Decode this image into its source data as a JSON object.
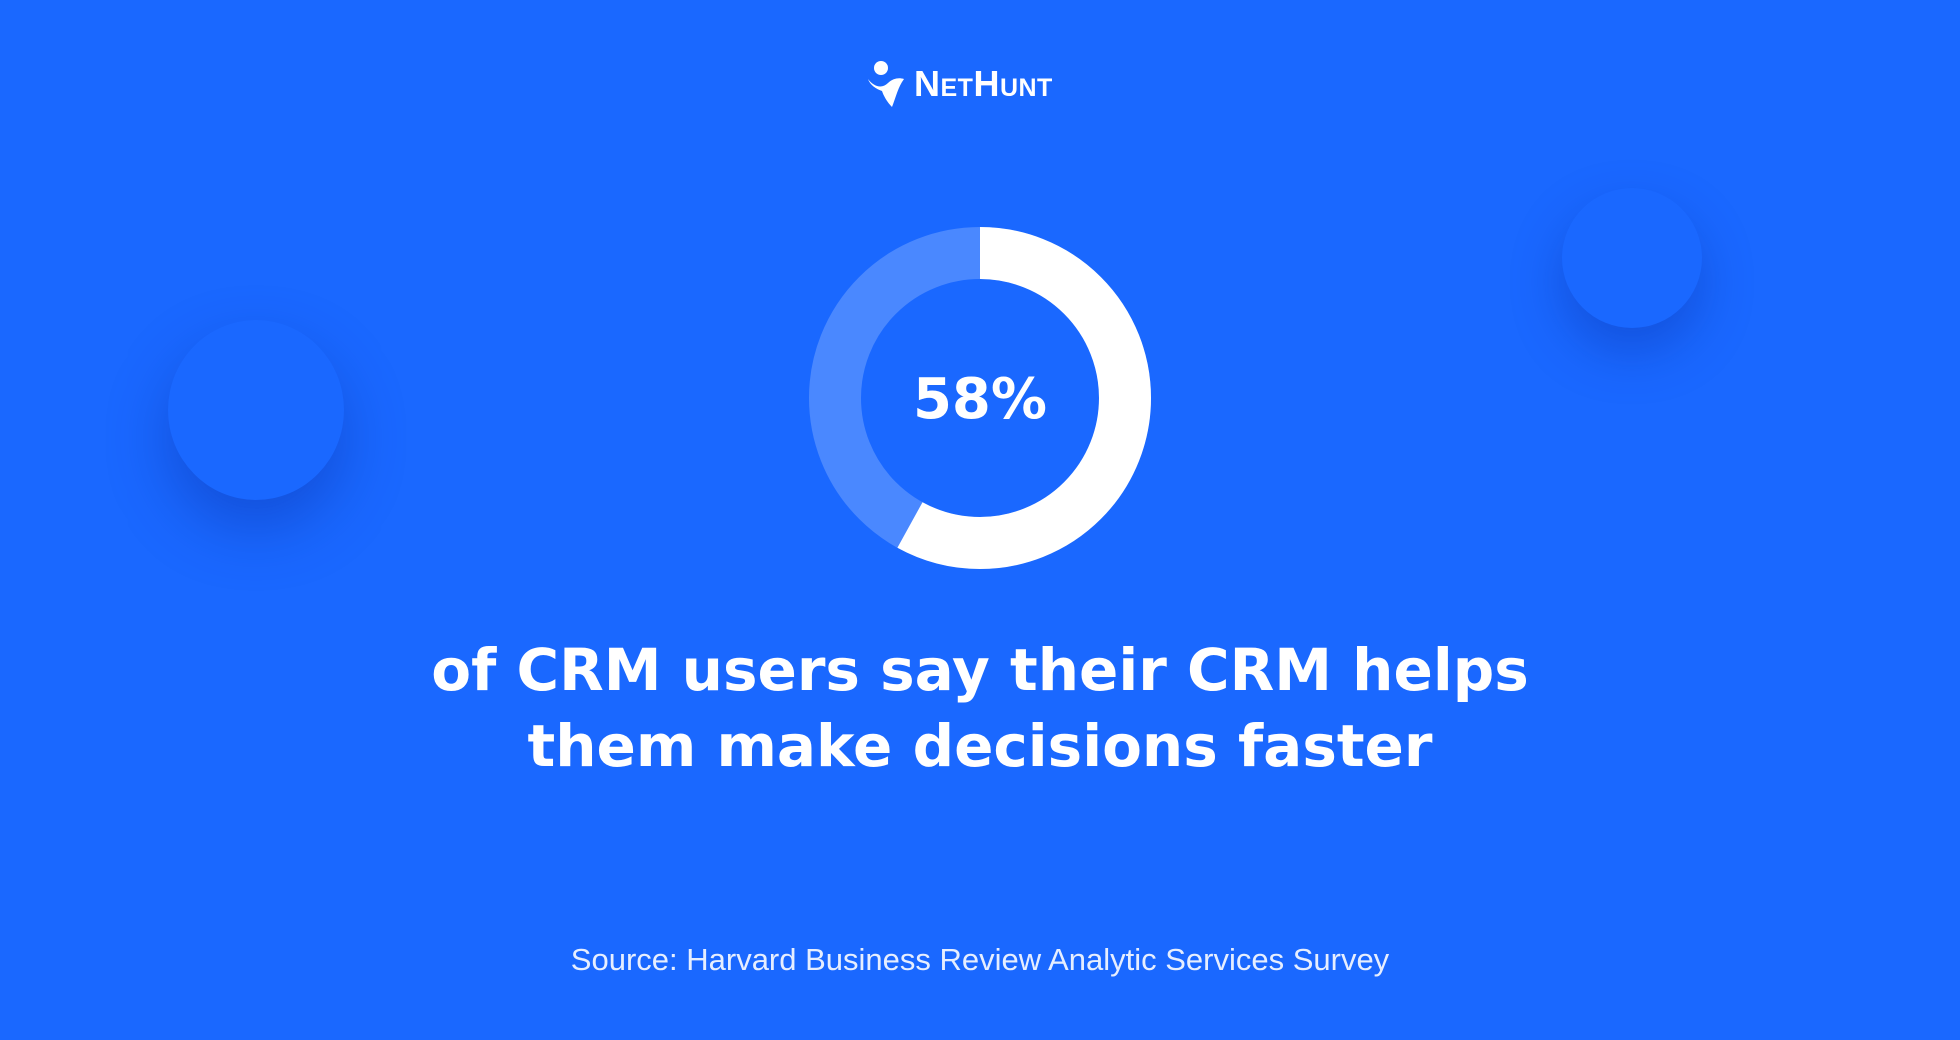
{
  "brand": {
    "logo_text": "NetHunt",
    "logo_icon": "nethunt-figure-icon"
  },
  "colors": {
    "background": "#1a68ff",
    "donut_fill": "#ffffff",
    "donut_track": "#4a88ff",
    "text": "#ffffff"
  },
  "chart_data": {
    "type": "pie",
    "style": "donut",
    "center_label": "58%",
    "slices": [
      {
        "value": 58
      },
      {
        "value": 42
      }
    ],
    "title": "",
    "legend": "none"
  },
  "headline": {
    "line1": "of CRM users say their CRM helps",
    "line2": "them make decisions faster"
  },
  "source": "Source: Harvard Business Review Analytic Services Survey"
}
